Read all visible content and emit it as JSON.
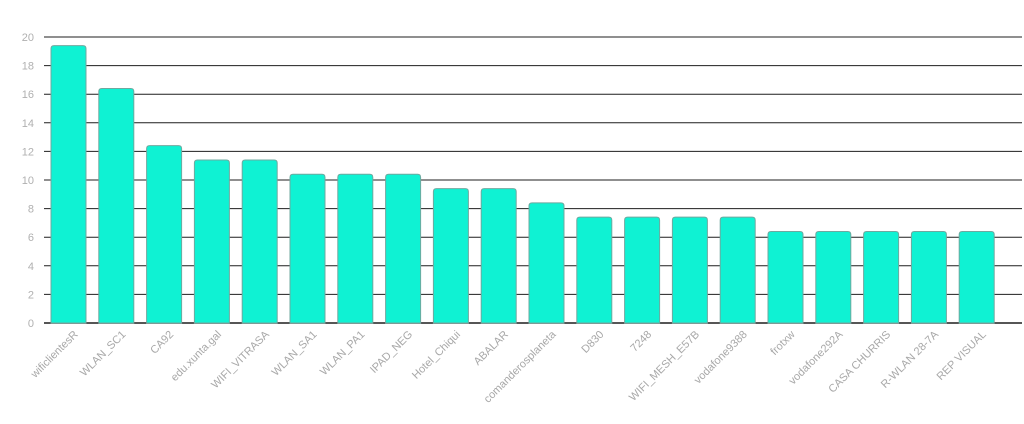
{
  "colors": {
    "bar": "#0ff2d3",
    "grid": "#1f1f1f",
    "tick_text": "#b0b0b0"
  },
  "chart_data": {
    "type": "bar",
    "title": "",
    "xlabel": "",
    "ylabel": "",
    "ylim": [
      0,
      20
    ],
    "yticks": [
      0,
      2,
      4,
      6,
      8,
      10,
      12,
      14,
      16,
      18,
      20
    ],
    "grid": true,
    "legend": "none",
    "categories": [
      "wificlientesR",
      "WLAN_SC1",
      "CA92",
      "edu.xunta.gal",
      "WIFI_VITRASA",
      "WLAN_SA1",
      "WLAN_PA1",
      "IPAD_NEG",
      "Hotel_Chiqui",
      "ABALAR",
      "comanderosplaneta",
      "D830",
      "7248",
      "WIFI_MESH_E57B",
      "vodafone9388",
      "frotxw",
      "vodafone292A",
      "CASA CHURRIS",
      "R-WLAN 28-7A",
      "REP VISUAL"
    ],
    "values": [
      19.4,
      16.4,
      12.4,
      11.4,
      11.4,
      10.4,
      10.4,
      10.4,
      9.4,
      9.4,
      8.4,
      7.4,
      7.4,
      7.4,
      7.4,
      6.4,
      6.4,
      6.4,
      6.4,
      6.4
    ]
  }
}
